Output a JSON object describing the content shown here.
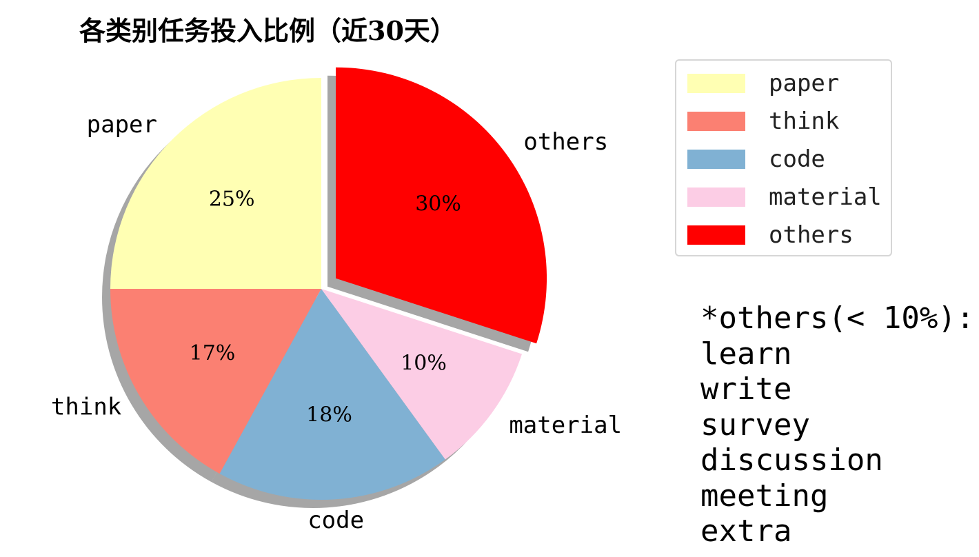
{
  "chart_data": {
    "type": "pie",
    "title": "各类别任务投入比例（近30天）",
    "categories": [
      "paper",
      "think",
      "code",
      "material",
      "others"
    ],
    "values": [
      25,
      17,
      18,
      10,
      30
    ],
    "data_labels": [
      "25%",
      "17%",
      "18%",
      "10%",
      "30%"
    ],
    "colors": [
      "#FFFFB3",
      "#FB8072",
      "#80B1D3",
      "#FCCDE5",
      "#FF0000"
    ],
    "exploded": [
      "others"
    ],
    "shadow": true,
    "start": "top, counter-clockwise",
    "legend": {
      "placement": "right",
      "entries": [
        "paper",
        "think",
        "code",
        "material",
        "others"
      ]
    }
  },
  "note": {
    "heading": "*others(< 10%):",
    "items": [
      "learn",
      "write",
      "survey",
      "discussion",
      "meeting",
      "extra"
    ]
  }
}
